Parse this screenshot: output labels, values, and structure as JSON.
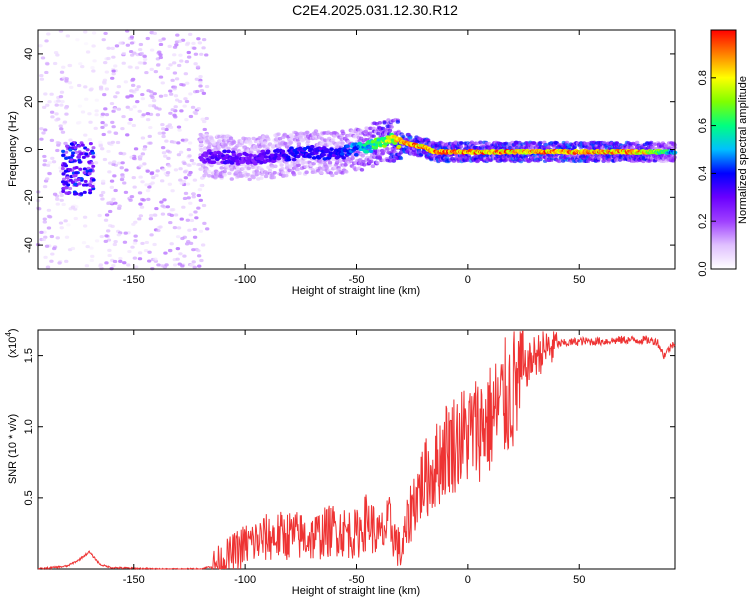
{
  "title": "C2E4.2025.031.12.30.R12",
  "chart_data": [
    {
      "type": "heatmap",
      "xlabel": "Height of straight line (km)",
      "ylabel": "Frequency (Hz)",
      "xlim": [
        -193,
        93
      ],
      "ylim": [
        -50,
        50
      ],
      "xticks": [
        -150,
        -100,
        -50,
        0,
        50
      ],
      "yticks": [
        -40,
        -20,
        0,
        20,
        40
      ],
      "colorbar": {
        "label": "Normalized spectral amplitude",
        "range": [
          0.0,
          1.0
        ],
        "ticks": [
          0.0,
          0.2,
          0.4,
          0.6,
          0.8
        ],
        "tick_labels": [
          "0.0",
          "0.2",
          "0.4",
          "0.6",
          "0.8"
        ],
        "colormap": [
          "#ffffff",
          "#e0c0ff",
          "#9f40ff",
          "#6a00ff",
          "#0000ff",
          "#00c0ff",
          "#00ff80",
          "#80ff00",
          "#ffff00",
          "#ff8000",
          "#ff0000"
        ]
      },
      "ridge": {
        "x": [
          -120,
          -110,
          -100,
          -90,
          -80,
          -70,
          -60,
          -50,
          -45,
          -40,
          -35,
          -30,
          -25,
          -20,
          -15,
          -10,
          -5,
          0,
          10,
          20,
          40,
          60,
          80,
          93
        ],
        "y": [
          -3,
          -3,
          -4,
          -3,
          -2,
          -1,
          -2,
          0,
          1,
          3,
          4,
          3,
          2,
          1,
          -1,
          -1,
          -1,
          -1,
          -1,
          -1,
          -1,
          -1,
          -1,
          -1
        ],
        "amplitude": [
          0.3,
          0.35,
          0.3,
          0.35,
          0.4,
          0.4,
          0.4,
          0.5,
          0.6,
          0.7,
          0.8,
          0.95,
          0.95,
          0.95,
          0.95,
          0.95,
          0.95,
          0.95,
          0.95,
          0.95,
          0.95,
          0.95,
          0.9,
          0.5
        ]
      },
      "noise_regions": [
        {
          "x_range": [
            -193,
            -180
          ],
          "amplitude": 0.1
        },
        {
          "x_range": [
            -165,
            -117
          ],
          "amplitude": 0.12
        },
        {
          "x_range": [
            -180,
            -165
          ],
          "amplitude": 0.05
        }
      ]
    },
    {
      "type": "line",
      "xlabel": "Height of straight line (km)",
      "ylabel": "SNR (10 * v/v)",
      "y_multiplier": "(x10",
      "y_multiplier_exp": "4",
      "y_multiplier_close": ")",
      "xlim": [
        -193,
        93
      ],
      "ylim": [
        0,
        1.68
      ],
      "xticks": [
        -150,
        -100,
        -50,
        0,
        50
      ],
      "yticks": [
        0.5,
        1.0,
        1.5
      ],
      "ytick_labels": [
        "0.5",
        "1.0",
        "1.5"
      ],
      "color": "#ee3333",
      "series": [
        {
          "x": [
            -193,
            -180,
            -175,
            -170,
            -165,
            -160,
            -140,
            -120,
            -115,
            -110,
            -100,
            -90,
            -80,
            -70,
            -60,
            -50,
            -45,
            -40,
            -35,
            -30,
            -25,
            -20,
            -15,
            -10,
            -5,
            0,
            5,
            10,
            15,
            20,
            25,
            30,
            40,
            50,
            60,
            70,
            80,
            85,
            88,
            93
          ],
          "y": [
            0.0,
            0.02,
            0.06,
            0.12,
            0.03,
            0.01,
            0.0,
            0.0,
            0.02,
            0.06,
            0.17,
            0.22,
            0.24,
            0.22,
            0.28,
            0.24,
            0.35,
            0.22,
            0.32,
            0.1,
            0.45,
            0.62,
            0.7,
            0.85,
            0.9,
            0.95,
            1.0,
            1.05,
            1.15,
            1.25,
            1.38,
            1.5,
            1.58,
            1.6,
            1.6,
            1.61,
            1.61,
            1.6,
            1.5,
            1.6
          ]
        }
      ]
    }
  ]
}
